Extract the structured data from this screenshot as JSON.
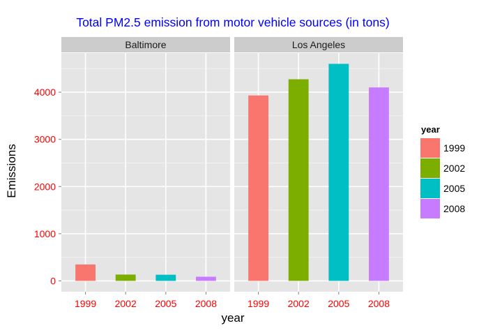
{
  "chart_data": {
    "type": "bar",
    "title": "Total PM2.5 emission from motor vehicle sources (in tons)",
    "xlabel": "year",
    "ylabel": "Emissions",
    "categories": [
      "1999",
      "2002",
      "2005",
      "2008"
    ],
    "y_ticks": [
      0,
      1000,
      2000,
      3000,
      4000
    ],
    "ylim": [
      -230,
      4830
    ],
    "grid": true,
    "legend_position": "right",
    "legend_title": "year",
    "facets": [
      {
        "label": "Baltimore",
        "values": [
          347,
          134,
          130,
          88
        ]
      },
      {
        "label": "Los Angeles",
        "values": [
          3931,
          4274,
          4601,
          4101
        ]
      }
    ],
    "colors": {
      "1999": "#F8766D",
      "2002": "#7CAE00",
      "2005": "#00BFC4",
      "2008": "#C77CFF"
    },
    "title_color": "#0000FF",
    "tick_label_color": "#FF0000",
    "panel_background": "#E5E5E5",
    "strip_background": "#CCCCCC"
  }
}
